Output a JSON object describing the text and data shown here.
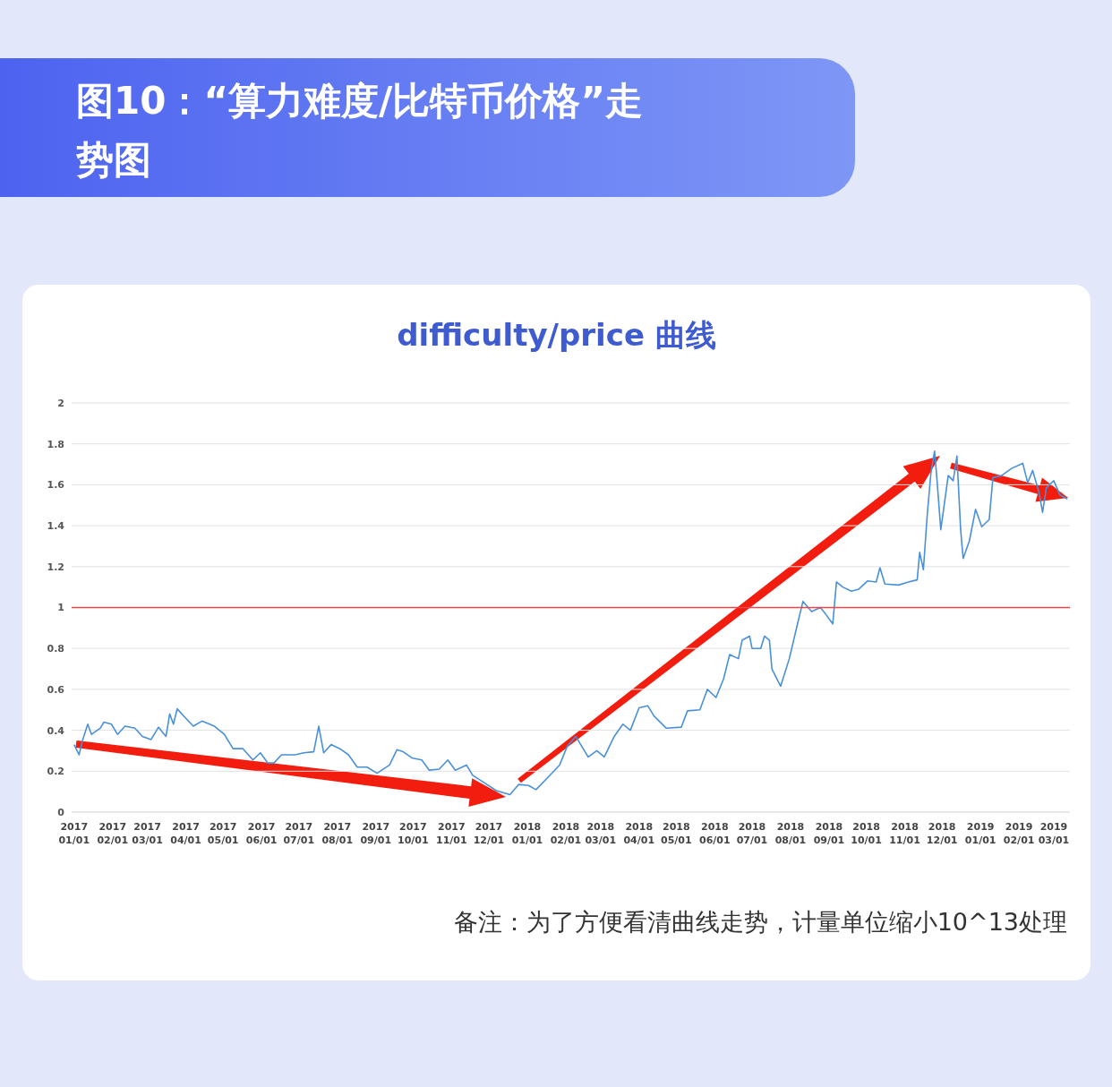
{
  "chart_data": {
    "type": "line",
    "title": "图10：“算力难度/比特币价格”走势图",
    "subtitle": "difficulty/price 曲线",
    "annotations": [
      "备注：为了方便看清曲线走势，计量单位缩小10^13处理"
    ],
    "x": [
      "2017-01-01",
      "2017-01-05",
      "2017-01-08",
      "2017-01-12",
      "2017-01-15",
      "2017-01-22",
      "2017-01-25",
      "2017-01-31",
      "2017-02-05",
      "2017-02-11",
      "2017-02-19",
      "2017-02-25",
      "2017-03-04",
      "2017-03-10",
      "2017-03-16",
      "2017-03-19",
      "2017-03-22",
      "2017-03-25",
      "2017-03-31",
      "2017-04-07",
      "2017-04-14",
      "2017-04-24",
      "2017-05-02",
      "2017-05-09",
      "2017-05-17",
      "2017-05-25",
      "2017-05-31",
      "2017-06-06",
      "2017-06-11",
      "2017-06-17",
      "2017-06-28",
      "2017-07-05",
      "2017-07-13",
      "2017-07-17",
      "2017-07-21",
      "2017-07-27",
      "2017-08-03",
      "2017-08-10",
      "2017-08-17",
      "2017-08-25",
      "2017-09-02",
      "2017-09-12",
      "2017-09-18",
      "2017-09-23",
      "2017-09-30",
      "2017-10-08",
      "2017-10-14",
      "2017-10-22",
      "2017-10-29",
      "2017-11-04",
      "2017-11-13",
      "2017-11-18",
      "2017-11-27",
      "2017-12-07",
      "2017-12-18",
      "2017-12-25",
      "2018-01-02",
      "2018-01-08",
      "2018-01-16",
      "2018-01-27",
      "2018-02-02",
      "2018-02-09",
      "2018-02-19",
      "2018-02-26",
      "2018-03-04",
      "2018-03-12",
      "2018-03-19",
      "2018-03-25",
      "2018-04-01",
      "2018-04-08",
      "2018-04-13",
      "2018-04-23",
      "2018-05-05",
      "2018-05-10",
      "2018-05-20",
      "2018-05-26",
      "2018-06-02",
      "2018-06-08",
      "2018-06-13",
      "2018-06-20",
      "2018-06-23",
      "2018-06-29",
      "2018-07-01",
      "2018-07-08",
      "2018-07-11",
      "2018-07-15",
      "2018-07-17",
      "2018-07-24",
      "2018-07-31",
      "2018-08-07",
      "2018-08-11",
      "2018-08-18",
      "2018-08-25",
      "2018-08-29",
      "2018-09-04",
      "2018-09-07",
      "2018-09-12",
      "2018-09-19",
      "2018-09-25",
      "2018-10-02",
      "2018-10-09",
      "2018-10-12",
      "2018-10-16",
      "2018-10-27",
      "2018-11-04",
      "2018-11-11",
      "2018-11-13",
      "2018-11-16",
      "2018-11-19",
      "2018-11-22",
      "2018-11-25",
      "2018-11-27",
      "2018-11-30",
      "2018-12-06",
      "2018-12-10",
      "2018-12-13",
      "2018-12-16",
      "2018-12-18",
      "2018-12-23",
      "2018-12-28",
      "2019-01-02",
      "2019-01-08",
      "2019-01-11",
      "2019-01-18",
      "2019-01-26",
      "2019-02-04",
      "2019-02-08",
      "2019-02-12",
      "2019-02-17",
      "2019-02-20",
      "2019-02-23",
      "2019-03-01",
      "2019-03-06",
      "2019-03-12"
    ],
    "series": [
      {
        "color": "#4a90d9",
        "values": [
          0.33,
          0.28,
          0.355,
          0.43,
          0.38,
          0.41,
          0.44,
          0.43,
          0.38,
          0.42,
          0.41,
          0.37,
          0.355,
          0.415,
          0.37,
          0.48,
          0.43,
          0.505,
          0.465,
          0.42,
          0.445,
          0.42,
          0.38,
          0.31,
          0.31,
          0.255,
          0.29,
          0.24,
          0.24,
          0.28,
          0.28,
          0.29,
          0.295,
          0.42,
          0.29,
          0.33,
          0.31,
          0.28,
          0.22,
          0.22,
          0.19,
          0.23,
          0.305,
          0.295,
          0.265,
          0.255,
          0.205,
          0.21,
          0.255,
          0.205,
          0.23,
          0.18,
          0.145,
          0.105,
          0.085,
          0.135,
          0.13,
          0.11,
          0.16,
          0.23,
          0.32,
          0.37,
          0.27,
          0.3,
          0.27,
          0.37,
          0.43,
          0.4,
          0.51,
          0.52,
          0.47,
          0.41,
          0.415,
          0.495,
          0.5,
          0.6,
          0.56,
          0.65,
          0.77,
          0.75,
          0.84,
          0.86,
          0.8,
          0.8,
          0.86,
          0.84,
          0.7,
          0.615,
          0.75,
          0.93,
          1.03,
          0.98,
          1.0,
          0.97,
          0.92,
          1.125,
          1.1,
          1.08,
          1.09,
          1.13,
          1.125,
          1.195,
          1.115,
          1.11,
          1.125,
          1.135,
          1.27,
          1.185,
          1.445,
          1.655,
          1.765,
          1.62,
          1.38,
          1.645,
          1.62,
          1.74,
          1.38,
          1.24,
          1.325,
          1.48,
          1.395,
          1.43,
          1.635,
          1.645,
          1.68,
          1.705,
          1.61,
          1.67,
          1.565,
          1.465,
          1.585,
          1.62,
          1.55,
          1.53
        ]
      }
    ],
    "xlim": [
      "2016-12-30",
      "2019-03-14"
    ],
    "xticks": [
      {
        "value": "2017-01-01",
        "label": "2017\n01/01"
      },
      {
        "value": "2017-02-01",
        "label": "2017\n02/01"
      },
      {
        "value": "2017-03-01",
        "label": "2017\n03/01"
      },
      {
        "value": "2017-04-01",
        "label": "2017\n04/01"
      },
      {
        "value": "2017-05-01",
        "label": "2017\n05/01"
      },
      {
        "value": "2017-06-01",
        "label": "2017\n06/01"
      },
      {
        "value": "2017-07-01",
        "label": "2017\n07/01"
      },
      {
        "value": "2017-08-01",
        "label": "2017\n08/01"
      },
      {
        "value": "2017-09-01",
        "label": "2017\n09/01"
      },
      {
        "value": "2017-10-01",
        "label": "2017\n10/01"
      },
      {
        "value": "2017-11-01",
        "label": "2017\n11/01"
      },
      {
        "value": "2017-12-01",
        "label": "2017\n12/01"
      },
      {
        "value": "2018-01-01",
        "label": "2018\n01/01"
      },
      {
        "value": "2018-02-01",
        "label": "2018\n02/01"
      },
      {
        "value": "2018-03-01",
        "label": "2018\n03/01"
      },
      {
        "value": "2018-04-01",
        "label": "2018\n04/01"
      },
      {
        "value": "2018-05-01",
        "label": "2018\n05/01"
      },
      {
        "value": "2018-06-01",
        "label": "2018\n06/01"
      },
      {
        "value": "2018-07-01",
        "label": "2018\n07/01"
      },
      {
        "value": "2018-08-01",
        "label": "2018\n08/01"
      },
      {
        "value": "2018-09-01",
        "label": "2018\n09/01"
      },
      {
        "value": "2018-10-01",
        "label": "2018\n10/01"
      },
      {
        "value": "2018-11-01",
        "label": "2018\n11/01"
      },
      {
        "value": "2018-12-01",
        "label": "2018\n12/01"
      },
      {
        "value": "2019-01-01",
        "label": "2019\n01/01"
      },
      {
        "value": "2019-02-01",
        "label": "2019\n02/01"
      },
      {
        "value": "2019-03-01",
        "label": "2019\n03/01"
      }
    ],
    "ylim": [
      0,
      2
    ],
    "yticks": [
      0,
      0.2,
      0.4,
      0.6,
      0.8,
      1,
      1.2,
      1.4,
      1.6,
      1.8,
      2
    ],
    "ref_lines": [
      {
        "axis": "y",
        "value": 1,
        "color": "#e8474b"
      }
    ],
    "grid": "y",
    "marker": "none",
    "line_style": "solid"
  }
}
